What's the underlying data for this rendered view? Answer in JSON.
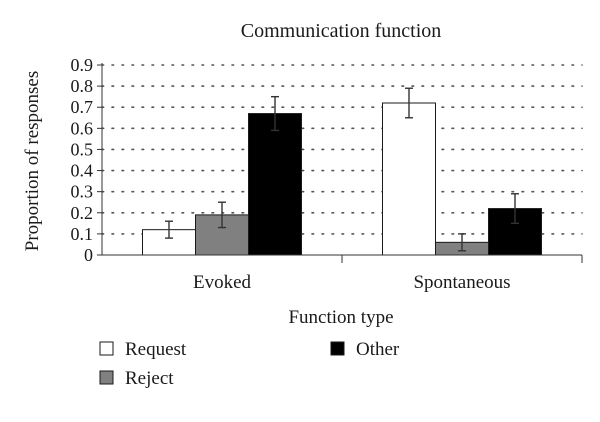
{
  "chart_data": {
    "type": "bar",
    "title": "Communication function",
    "xlabel": "Function type",
    "ylabel": "Proportion of responses",
    "categories": [
      "Evoked",
      "Spontaneous"
    ],
    "ylim": [
      0,
      0.9
    ],
    "yticks": [
      "0",
      "0.1",
      "0.2",
      "0.3",
      "0.4",
      "0.5",
      "0.6",
      "0.7",
      "0.8",
      "0.9"
    ],
    "grid": "dotted horizontal",
    "legend_position": "bottom",
    "series": [
      {
        "name": "Request",
        "color": "#ffffff",
        "values": [
          0.12,
          0.72
        ],
        "error": [
          0.04,
          0.07
        ]
      },
      {
        "name": "Reject",
        "color": "#808080",
        "values": [
          0.19,
          0.06
        ],
        "error": [
          0.06,
          0.04
        ]
      },
      {
        "name": "Other",
        "color": "#000000",
        "values": [
          0.67,
          0.22
        ],
        "error": [
          0.08,
          0.07
        ]
      }
    ]
  }
}
